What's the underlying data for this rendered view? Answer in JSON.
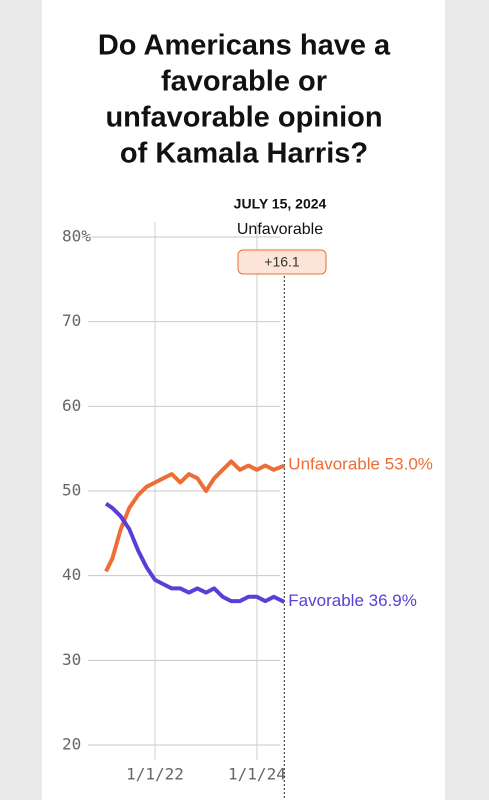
{
  "chart_data": {
    "type": "line",
    "title_lines": [
      "Do Americans have a",
      "favorable or",
      "unfavorable opinion",
      "of Kamala Harris?"
    ],
    "annotation": {
      "date": "JULY 15, 2024",
      "leader": "Unfavorable",
      "margin": "+16.1",
      "x": "2024-07-15"
    },
    "x": [
      "2021-01-15",
      "2021-03-01",
      "2021-05-01",
      "2021-07-01",
      "2021-09-01",
      "2021-11-01",
      "2022-01-01",
      "2022-03-01",
      "2022-05-01",
      "2022-07-01",
      "2022-09-01",
      "2022-11-01",
      "2023-01-01",
      "2023-03-01",
      "2023-05-01",
      "2023-07-01",
      "2023-09-01",
      "2023-11-01",
      "2024-01-01",
      "2024-03-01",
      "2024-05-01",
      "2024-07-15"
    ],
    "series": [
      {
        "name": "Unfavorable",
        "color": "#ec6d35",
        "values": [
          40.5,
          42,
          45.5,
          48,
          49.5,
          50.5,
          51,
          51.5,
          52,
          51,
          52,
          51.5,
          50,
          51.5,
          52.5,
          53.5,
          52.5,
          53,
          52.5,
          53,
          52.5,
          53.0
        ],
        "value_labels": [
          null,
          null,
          null,
          null,
          null,
          null,
          null,
          null,
          null,
          null,
          null,
          null,
          null,
          null,
          null,
          null,
          null,
          null,
          null,
          null,
          null,
          "53.0%"
        ]
      },
      {
        "name": "Favorable",
        "color": "#5b3ed6",
        "values": [
          48.5,
          48,
          47,
          45.5,
          43,
          41,
          39.5,
          39,
          38.5,
          38.5,
          38,
          38.5,
          38,
          38.5,
          37.5,
          37,
          37,
          37.5,
          37.5,
          37,
          37.5,
          36.9
        ],
        "value_labels": [
          null,
          null,
          null,
          null,
          null,
          null,
          null,
          null,
          null,
          null,
          null,
          null,
          null,
          null,
          null,
          null,
          null,
          null,
          null,
          null,
          null,
          "36.9%"
        ]
      }
    ],
    "xlim": [
      "2020-09-01",
      "2024-09-01"
    ],
    "xticks": [
      {
        "value": "2022-01-01",
        "label": "1/1/22"
      },
      {
        "value": "2024-01-01",
        "label": "1/1/24"
      }
    ],
    "ylim": [
      20,
      80
    ],
    "yticks": [
      20,
      30,
      40,
      50,
      60,
      70,
      {
        "value": 80,
        "label": "80%"
      }
    ],
    "grid": true
  }
}
